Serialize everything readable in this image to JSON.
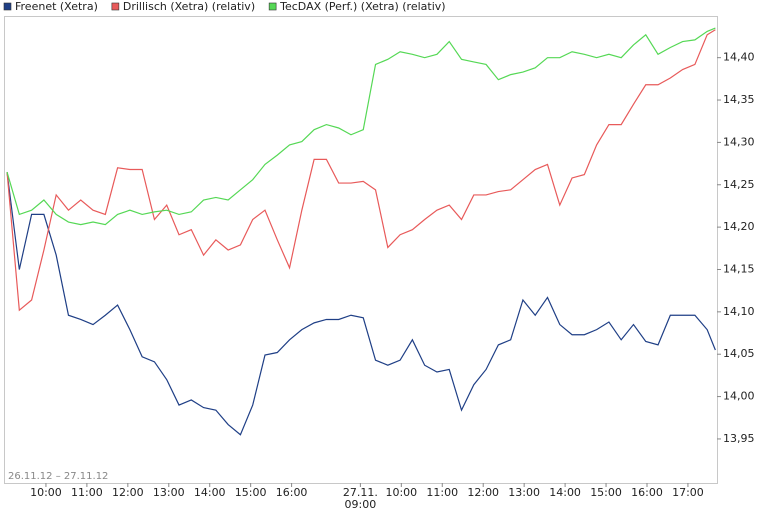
{
  "chart_data": {
    "type": "line",
    "date_range": "26.11.12 – 27.11.12",
    "x": [
      0.05,
      0.35,
      0.65,
      0.95,
      1.25,
      1.55,
      1.85,
      2.15,
      2.45,
      2.75,
      3.05,
      3.35,
      3.65,
      3.95,
      4.25,
      4.55,
      4.85,
      5.15,
      5.45,
      5.75,
      6.05,
      6.35,
      6.65,
      6.95,
      7.25,
      7.55,
      7.85,
      8.15,
      8.45,
      8.75,
      9.05,
      9.35,
      9.65,
      9.95,
      10.25,
      10.55,
      10.85,
      11.15,
      11.45,
      11.75,
      12.05,
      12.35,
      12.65,
      12.95,
      13.25,
      13.55,
      13.85,
      14.15,
      14.45,
      14.75,
      15.05,
      15.35,
      15.65,
      15.95,
      16.25,
      16.55,
      16.85,
      17.15,
      17.35
    ],
    "series": [
      {
        "name": "Freenet (Xetra)",
        "color": "#1f3f86",
        "values": [
          14.265,
          14.15,
          14.215,
          14.215,
          14.167,
          14.096,
          14.091,
          14.085,
          14.096,
          14.108,
          14.079,
          14.047,
          14.041,
          14.02,
          13.99,
          13.996,
          13.987,
          13.984,
          13.967,
          13.955,
          13.99,
          14.049,
          14.052,
          14.067,
          14.079,
          14.087,
          14.091,
          14.091,
          14.096,
          14.093,
          14.043,
          14.037,
          14.043,
          14.067,
          14.037,
          14.029,
          14.032,
          13.984,
          14.014,
          14.032,
          14.061,
          14.067,
          14.114,
          14.096,
          14.117,
          14.085,
          14.073,
          14.073,
          14.079,
          14.088,
          14.067,
          14.085,
          14.065,
          14.061,
          14.096,
          14.096,
          14.096,
          14.079,
          14.055
        ]
      },
      {
        "name": "Drillisch (Xetra) (relativ)",
        "color": "#e85a5a",
        "values": [
          14.265,
          14.102,
          14.114,
          14.173,
          14.238,
          14.22,
          14.232,
          14.22,
          14.215,
          14.27,
          14.268,
          14.268,
          14.209,
          14.226,
          14.191,
          14.197,
          14.167,
          14.185,
          14.173,
          14.179,
          14.209,
          14.22,
          14.185,
          14.152,
          14.22,
          14.28,
          14.28,
          14.252,
          14.252,
          14.254,
          14.244,
          14.176,
          14.191,
          14.197,
          14.209,
          14.22,
          14.226,
          14.209,
          14.238,
          14.238,
          14.242,
          14.244,
          14.256,
          14.268,
          14.274,
          14.226,
          14.258,
          14.262,
          14.297,
          14.321,
          14.321,
          14.345,
          14.368,
          14.368,
          14.376,
          14.386,
          14.392,
          14.427,
          14.433
        ]
      },
      {
        "name": "TecDAX (Perf.) (Xetra) (relativ)",
        "color": "#55d855",
        "values": [
          14.265,
          14.215,
          14.22,
          14.232,
          14.215,
          14.206,
          14.203,
          14.206,
          14.203,
          14.215,
          14.22,
          14.215,
          14.218,
          14.22,
          14.215,
          14.218,
          14.232,
          14.235,
          14.232,
          14.244,
          14.256,
          14.274,
          14.285,
          14.297,
          14.301,
          14.315,
          14.321,
          14.317,
          14.309,
          14.315,
          14.392,
          14.398,
          14.407,
          14.404,
          14.4,
          14.404,
          14.419,
          14.398,
          14.395,
          14.392,
          14.374,
          14.38,
          14.383,
          14.388,
          14.4,
          14.4,
          14.407,
          14.404,
          14.4,
          14.404,
          14.4,
          14.415,
          14.427,
          14.404,
          14.412,
          14.419,
          14.421,
          14.431,
          14.435
        ]
      }
    ],
    "xlim": [
      0,
      17.39
    ],
    "xticks": [
      {
        "value": 1,
        "label": "10:00"
      },
      {
        "value": 2,
        "label": "11:00"
      },
      {
        "value": 3,
        "label": "12:00"
      },
      {
        "value": 4,
        "label": "13:00"
      },
      {
        "value": 5,
        "label": "14:00"
      },
      {
        "value": 6,
        "label": "15:00"
      },
      {
        "value": 7,
        "label": "16:00"
      },
      {
        "value": 8.68,
        "label": "27.11.\n09:00"
      },
      {
        "value": 9.68,
        "label": "10:00"
      },
      {
        "value": 10.68,
        "label": "11:00"
      },
      {
        "value": 11.68,
        "label": "12:00"
      },
      {
        "value": 12.68,
        "label": "13:00"
      },
      {
        "value": 13.68,
        "label": "14:00"
      },
      {
        "value": 14.68,
        "label": "15:00"
      },
      {
        "value": 15.68,
        "label": "16:00"
      },
      {
        "value": 16.68,
        "label": "17:00"
      }
    ],
    "ylim": [
      13.898,
      14.448
    ],
    "yticks": [
      {
        "value": 13.95,
        "label": "13,95"
      },
      {
        "value": 14.0,
        "label": "14,00"
      },
      {
        "value": 14.05,
        "label": "14,05"
      },
      {
        "value": 14.1,
        "label": "14,10"
      },
      {
        "value": 14.15,
        "label": "14,15"
      },
      {
        "value": 14.2,
        "label": "14,20"
      },
      {
        "value": 14.25,
        "label": "14,25"
      },
      {
        "value": 14.3,
        "label": "14,30"
      },
      {
        "value": 14.35,
        "label": "14,35"
      },
      {
        "value": 14.4,
        "label": "14,40"
      }
    ],
    "y_axis_side": "right",
    "legend": "top-left"
  }
}
